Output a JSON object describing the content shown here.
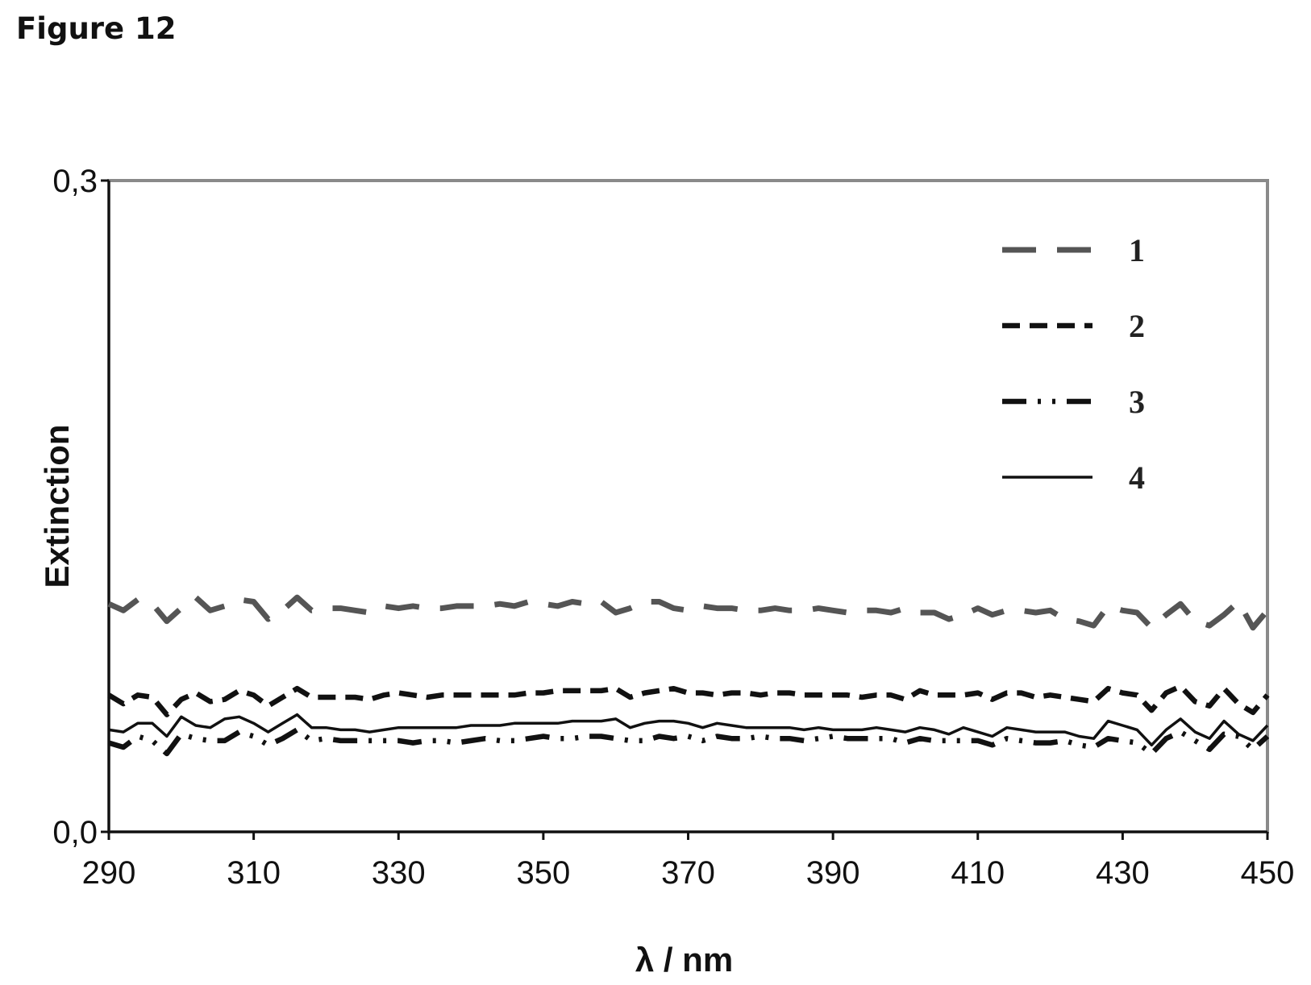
{
  "figure_label": "Figure 12",
  "chart_data": {
    "type": "line",
    "title": "",
    "xlabel": "λ / nm",
    "ylabel": "Extinction",
    "xlim": [
      290,
      450
    ],
    "ylim": [
      0.0,
      0.3
    ],
    "x_ticks": [
      "290",
      "310",
      "330",
      "350",
      "370",
      "390",
      "410",
      "430",
      "450"
    ],
    "y_ticks": [
      "0,0",
      "0,3"
    ],
    "grid": false,
    "legend_position": "top-right",
    "x": [
      290,
      292,
      294,
      296,
      298,
      300,
      302,
      304,
      306,
      308,
      310,
      312,
      314,
      316,
      318,
      320,
      322,
      324,
      326,
      328,
      330,
      332,
      334,
      336,
      338,
      340,
      342,
      344,
      346,
      348,
      350,
      352,
      354,
      356,
      358,
      360,
      362,
      364,
      366,
      368,
      370,
      372,
      374,
      376,
      378,
      380,
      382,
      384,
      386,
      388,
      390,
      392,
      394,
      396,
      398,
      400,
      402,
      404,
      406,
      408,
      410,
      412,
      414,
      416,
      418,
      420,
      422,
      424,
      426,
      428,
      430,
      432,
      434,
      436,
      438,
      440,
      442,
      444,
      446,
      448,
      450
    ],
    "series": [
      {
        "name": "1",
        "dash": "long-dash",
        "values": [
          0.105,
          0.102,
          0.107,
          0.105,
          0.097,
          0.103,
          0.108,
          0.102,
          0.104,
          0.107,
          0.106,
          0.098,
          0.102,
          0.108,
          0.102,
          0.103,
          0.103,
          0.102,
          0.101,
          0.104,
          0.103,
          0.104,
          0.103,
          0.103,
          0.104,
          0.104,
          0.104,
          0.105,
          0.104,
          0.106,
          0.105,
          0.104,
          0.106,
          0.105,
          0.106,
          0.101,
          0.103,
          0.106,
          0.106,
          0.103,
          0.102,
          0.104,
          0.103,
          0.103,
          0.102,
          0.102,
          0.103,
          0.102,
          0.102,
          0.103,
          0.102,
          0.101,
          0.102,
          0.102,
          0.101,
          0.103,
          0.101,
          0.101,
          0.098,
          0.1,
          0.103,
          0.1,
          0.102,
          0.102,
          0.101,
          0.102,
          0.098,
          0.097,
          0.095,
          0.104,
          0.102,
          0.101,
          0.094,
          0.1,
          0.105,
          0.097,
          0.095,
          0.1,
          0.106,
          0.094,
          0.102
        ]
      },
      {
        "name": "2",
        "dash": "short-dash",
        "values": [
          0.063,
          0.059,
          0.063,
          0.062,
          0.054,
          0.061,
          0.064,
          0.06,
          0.061,
          0.065,
          0.063,
          0.058,
          0.062,
          0.066,
          0.062,
          0.062,
          0.062,
          0.062,
          0.061,
          0.063,
          0.064,
          0.063,
          0.062,
          0.063,
          0.063,
          0.063,
          0.063,
          0.063,
          0.063,
          0.064,
          0.064,
          0.065,
          0.065,
          0.065,
          0.065,
          0.066,
          0.062,
          0.064,
          0.065,
          0.066,
          0.064,
          0.064,
          0.063,
          0.064,
          0.064,
          0.063,
          0.064,
          0.064,
          0.063,
          0.063,
          0.063,
          0.063,
          0.062,
          0.063,
          0.063,
          0.061,
          0.065,
          0.063,
          0.063,
          0.063,
          0.064,
          0.061,
          0.064,
          0.064,
          0.062,
          0.063,
          0.062,
          0.061,
          0.06,
          0.066,
          0.064,
          0.063,
          0.056,
          0.064,
          0.067,
          0.06,
          0.058,
          0.066,
          0.059,
          0.055,
          0.063
        ]
      },
      {
        "name": "3",
        "dash": "dash-dot-dot",
        "values": [
          0.041,
          0.039,
          0.044,
          0.042,
          0.036,
          0.045,
          0.043,
          0.042,
          0.042,
          0.046,
          0.044,
          0.04,
          0.043,
          0.047,
          0.042,
          0.043,
          0.042,
          0.042,
          0.042,
          0.042,
          0.042,
          0.041,
          0.042,
          0.042,
          0.041,
          0.042,
          0.043,
          0.042,
          0.042,
          0.043,
          0.044,
          0.043,
          0.043,
          0.044,
          0.044,
          0.043,
          0.042,
          0.042,
          0.044,
          0.043,
          0.044,
          0.042,
          0.044,
          0.043,
          0.043,
          0.044,
          0.043,
          0.043,
          0.042,
          0.043,
          0.044,
          0.043,
          0.043,
          0.043,
          0.043,
          0.041,
          0.043,
          0.042,
          0.042,
          0.042,
          0.042,
          0.04,
          0.043,
          0.042,
          0.041,
          0.041,
          0.042,
          0.04,
          0.039,
          0.043,
          0.042,
          0.041,
          0.036,
          0.043,
          0.046,
          0.042,
          0.038,
          0.045,
          0.044,
          0.038,
          0.044
        ]
      },
      {
        "name": "4",
        "dash": "solid",
        "values": [
          0.047,
          0.046,
          0.05,
          0.05,
          0.044,
          0.053,
          0.049,
          0.048,
          0.052,
          0.053,
          0.05,
          0.046,
          0.05,
          0.054,
          0.048,
          0.048,
          0.047,
          0.047,
          0.046,
          0.047,
          0.048,
          0.048,
          0.048,
          0.048,
          0.048,
          0.049,
          0.049,
          0.049,
          0.05,
          0.05,
          0.05,
          0.05,
          0.051,
          0.051,
          0.051,
          0.052,
          0.048,
          0.05,
          0.051,
          0.051,
          0.05,
          0.048,
          0.05,
          0.049,
          0.048,
          0.048,
          0.048,
          0.048,
          0.047,
          0.048,
          0.047,
          0.047,
          0.047,
          0.048,
          0.047,
          0.046,
          0.048,
          0.047,
          0.045,
          0.048,
          0.046,
          0.044,
          0.048,
          0.047,
          0.046,
          0.046,
          0.046,
          0.044,
          0.043,
          0.051,
          0.049,
          0.047,
          0.04,
          0.047,
          0.052,
          0.046,
          0.043,
          0.051,
          0.045,
          0.042,
          0.049
        ]
      }
    ]
  }
}
